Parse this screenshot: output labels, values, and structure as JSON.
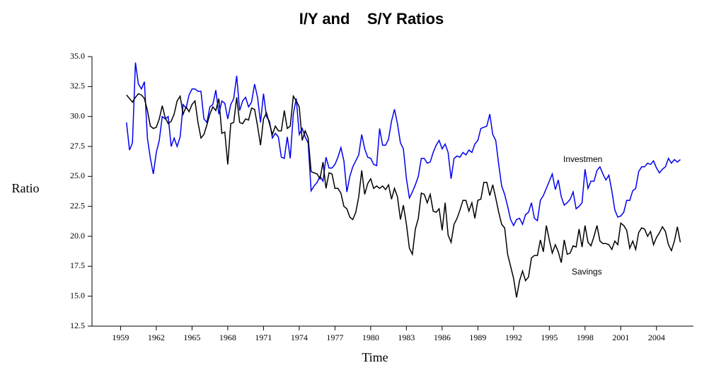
{
  "chart_data": {
    "type": "line",
    "title": "I/Y and    S/Y Ratios",
    "xlabel": "Time",
    "ylabel": "Ratio",
    "annotations": [
      "Investmen",
      "Savings"
    ],
    "xlim": [
      1956.6,
      2007.1
    ],
    "xticks": [
      1959,
      1962,
      1965,
      1968,
      1971,
      1974,
      1977,
      1980,
      1983,
      1986,
      1989,
      1992,
      1995,
      1998,
      2001,
      2004
    ],
    "ylim": [
      12.5,
      35
    ],
    "yticks": [
      {
        "value": 12.5,
        "label": "12.5"
      },
      {
        "value": 15,
        "label": "15.0"
      },
      {
        "value": 17.5,
        "label": "17.5"
      },
      {
        "value": 20,
        "label": "20.0"
      },
      {
        "value": 22.5,
        "label": "22.5"
      },
      {
        "value": 25,
        "label": "25.0"
      },
      {
        "value": 27.5,
        "label": "27.5"
      },
      {
        "value": 30,
        "label": "30.0"
      },
      {
        "value": 32.5,
        "label": "32.5"
      },
      {
        "value": 35,
        "label": "35.0"
      }
    ],
    "x": [
      1959.5,
      1959.75,
      1960,
      1960.25,
      1960.5,
      1960.75,
      1961,
      1961.25,
      1961.5,
      1961.75,
      1962,
      1962.25,
      1962.5,
      1962.75,
      1963,
      1963.25,
      1963.5,
      1963.75,
      1964,
      1964.25,
      1964.5,
      1964.75,
      1965,
      1965.25,
      1965.5,
      1965.75,
      1966,
      1966.25,
      1966.5,
      1966.75,
      1967,
      1967.25,
      1967.5,
      1967.75,
      1968,
      1968.25,
      1968.5,
      1968.75,
      1969,
      1969.25,
      1969.5,
      1969.75,
      1970,
      1970.25,
      1970.5,
      1970.75,
      1971,
      1971.25,
      1971.5,
      1971.75,
      1972,
      1972.25,
      1972.5,
      1972.75,
      1973,
      1973.25,
      1973.5,
      1973.75,
      1974,
      1974.25,
      1974.5,
      1974.75,
      1975,
      1975.25,
      1975.5,
      1975.75,
      1976,
      1976.25,
      1976.5,
      1976.75,
      1977,
      1977.25,
      1977.5,
      1977.75,
      1978,
      1978.25,
      1978.5,
      1978.75,
      1979,
      1979.25,
      1979.5,
      1979.75,
      1980,
      1980.25,
      1980.5,
      1980.75,
      1981,
      1981.25,
      1981.5,
      1981.75,
      1982,
      1982.25,
      1982.5,
      1982.75,
      1983,
      1983.25,
      1983.5,
      1983.75,
      1984,
      1984.25,
      1984.5,
      1984.75,
      1985,
      1985.25,
      1985.5,
      1985.75,
      1986,
      1986.25,
      1986.5,
      1986.75,
      1987,
      1987.25,
      1987.5,
      1987.75,
      1988,
      1988.25,
      1988.5,
      1988.75,
      1989,
      1989.25,
      1989.5,
      1989.75,
      1990,
      1990.25,
      1990.5,
      1990.75,
      1991,
      1991.25,
      1991.5,
      1991.75,
      1992,
      1992.25,
      1992.5,
      1992.75,
      1993,
      1993.25,
      1993.5,
      1993.75,
      1994,
      1994.25,
      1994.5,
      1994.75,
      1995,
      1995.25,
      1995.5,
      1995.75,
      1996,
      1996.25,
      1996.5,
      1996.75,
      1997,
      1997.25,
      1997.5,
      1997.75,
      1998,
      1998.25,
      1998.5,
      1998.75,
      1999,
      1999.25,
      1999.5,
      1999.75,
      2000,
      2000.25,
      2000.5,
      2000.75,
      2001,
      2001.25,
      2001.5,
      2001.75,
      2002,
      2002.25,
      2002.5,
      2002.75,
      2003,
      2003.25,
      2003.5,
      2003.75,
      2004,
      2004.25,
      2004.5,
      2004.75,
      2005,
      2005.25,
      2005.5,
      2005.75,
      2006
    ],
    "series": [
      {
        "name": "Investmen",
        "color": "#0000ee",
        "values": [
          29.5,
          27.2,
          27.8,
          34.5,
          32.7,
          32.3,
          32.9,
          28.2,
          26.5,
          25.2,
          27.0,
          28.0,
          30.0,
          29.8,
          30.0,
          27.5,
          28.2,
          27.5,
          28.3,
          31.0,
          30.7,
          31.8,
          32.3,
          32.3,
          32.1,
          32.1,
          29.8,
          29.5,
          30.8,
          31.0,
          32.2,
          30.2,
          31.3,
          31.1,
          29.8,
          31.0,
          31.5,
          33.4,
          30.5,
          31.3,
          31.6,
          30.8,
          31.2,
          32.7,
          31.6,
          29.5,
          31.9,
          30.0,
          29.6,
          28.2,
          28.6,
          28.3,
          26.6,
          26.5,
          28.3,
          26.5,
          30.2,
          31.5,
          28.5,
          29.0,
          28.3,
          27.8,
          23.8,
          24.2,
          24.5,
          25.0,
          24.6,
          26.6,
          25.7,
          25.7,
          26.0,
          26.6,
          27.4,
          26.3,
          23.7,
          25.0,
          25.8,
          26.3,
          26.8,
          28.5,
          27.3,
          26.6,
          26.5,
          26.0,
          25.9,
          29.0,
          27.6,
          27.6,
          28.1,
          29.6,
          30.6,
          29.4,
          27.8,
          27.3,
          24.8,
          23.2,
          23.7,
          24.3,
          25.0,
          26.5,
          26.5,
          26.1,
          26.2,
          27.0,
          27.6,
          28.0,
          27.3,
          27.7,
          27.0,
          24.8,
          26.5,
          26.7,
          26.6,
          27.0,
          26.8,
          27.2,
          27.0,
          27.7,
          28.0,
          29.0,
          29.1,
          29.2,
          30.2,
          28.5,
          28.0,
          26.0,
          24.2,
          23.5,
          22.5,
          21.4,
          20.9,
          21.4,
          21.5,
          21.0,
          21.8,
          22.0,
          22.8,
          21.5,
          21.3,
          23.0,
          23.4,
          24.0,
          24.6,
          25.2,
          23.9,
          24.7,
          23.3,
          22.6,
          22.8,
          23.1,
          23.7,
          22.3,
          22.5,
          22.8,
          25.6,
          24.0,
          24.6,
          24.6,
          25.5,
          25.8,
          25.2,
          24.7,
          25.1,
          23.8,
          22.2,
          21.6,
          21.7,
          22.0,
          23.0,
          23.0,
          23.8,
          24.0,
          25.4,
          25.8,
          25.8,
          26.1,
          26.0,
          26.3,
          25.7,
          25.3,
          25.6,
          25.8,
          26.5,
          26.1,
          26.4,
          26.2,
          26.4
        ]
      },
      {
        "name": "Savings",
        "color": "#000000",
        "values": [
          31.8,
          31.5,
          31.2,
          31.6,
          31.9,
          31.8,
          31.5,
          30.5,
          29.2,
          29.0,
          29.1,
          29.8,
          30.9,
          29.9,
          29.4,
          29.6,
          30.2,
          31.3,
          31.7,
          30.2,
          30.8,
          30.4,
          31.0,
          31.3,
          29.5,
          28.2,
          28.5,
          29.3,
          30.2,
          30.8,
          30.5,
          31.5,
          28.6,
          28.7,
          26.0,
          29.4,
          29.5,
          31.6,
          29.5,
          29.4,
          29.8,
          29.7,
          30.7,
          30.6,
          29.2,
          27.6,
          29.8,
          30.3,
          29.4,
          28.5,
          29.2,
          28.8,
          28.8,
          30.5,
          29.0,
          29.2,
          31.7,
          31.3,
          30.8,
          28.0,
          28.8,
          28.2,
          25.4,
          25.3,
          25.2,
          24.8,
          26.2,
          24.0,
          25.3,
          25.2,
          24.0,
          24.0,
          23.6,
          22.5,
          22.3,
          21.6,
          21.4,
          22.0,
          23.3,
          25.5,
          23.5,
          24.4,
          24.8,
          24.0,
          24.2,
          24.0,
          24.2,
          23.9,
          24.3,
          23.1,
          24.0,
          23.3,
          21.4,
          22.6,
          21.0,
          19.0,
          18.5,
          20.6,
          21.5,
          23.6,
          23.5,
          22.8,
          23.5,
          22.1,
          22.0,
          22.3,
          20.5,
          22.8,
          20.1,
          19.5,
          21.0,
          21.5,
          22.2,
          23.0,
          23.0,
          22.1,
          22.8,
          21.5,
          23.0,
          23.1,
          24.5,
          24.5,
          23.4,
          24.3,
          23.2,
          22.0,
          21.0,
          20.7,
          18.5,
          17.5,
          16.5,
          14.9,
          16.3,
          17.1,
          16.3,
          16.6,
          18.2,
          18.4,
          18.4,
          19.7,
          18.7,
          20.9,
          19.7,
          18.6,
          19.3,
          18.7,
          17.8,
          19.7,
          18.5,
          18.6,
          19.2,
          19.1,
          20.6,
          19.1,
          20.9,
          19.5,
          19.2,
          20.0,
          20.9,
          19.6,
          19.4,
          19.4,
          19.3,
          18.9,
          19.6,
          19.3,
          21.1,
          20.9,
          20.5,
          19.0,
          19.6,
          18.9,
          20.3,
          20.7,
          20.6,
          20.0,
          20.4,
          19.3,
          19.9,
          20.3,
          20.8,
          20.4,
          19.3,
          18.8,
          19.6,
          20.8,
          19.5
        ]
      }
    ]
  }
}
